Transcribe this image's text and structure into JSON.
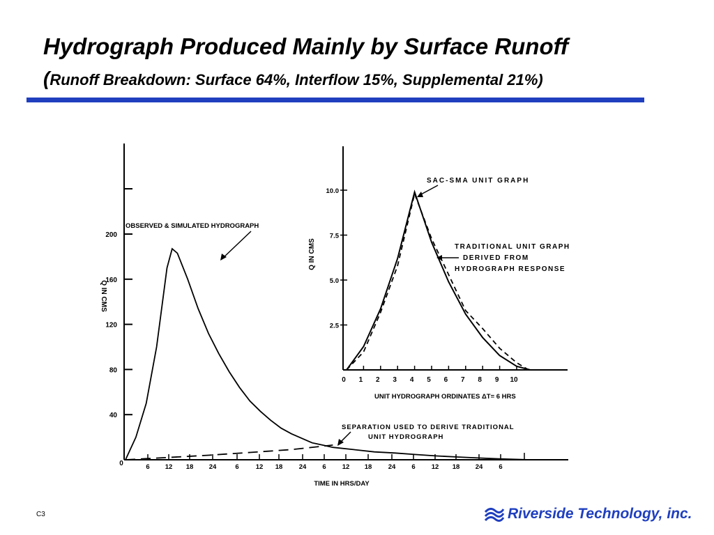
{
  "slide": {
    "title": "Hydrograph Produced Mainly by Surface Runoff",
    "subtitle_paren": "(",
    "subtitle": "Runoff Breakdown:  Surface 64%, Interflow 15%, Supplemental 21%)",
    "slide_number": "C3",
    "logo_text": "Riverside Technology, inc.",
    "rule_color": "#1f3fbf"
  },
  "chart_data": [
    {
      "type": "line",
      "ylabel": "Q IN CMS",
      "xlabel": "TIME IN HRS/DAY",
      "ylim": [
        0,
        280
      ],
      "yticks": [
        0,
        40,
        80,
        120,
        160,
        200
      ],
      "xlim": [
        0,
        39
      ],
      "xtick_labels": [
        "6",
        "12",
        "18",
        "24",
        "6",
        "12",
        "18",
        "24",
        "6",
        "12",
        "18",
        "24",
        "6",
        "12",
        "18",
        "24",
        "6"
      ],
      "annotations": [
        "OBSERVED & SIMULATED HYDROGRAPH",
        "SEPARATION USED TO DERIVE TRADITIONAL UNIT HYDROGRAPH"
      ],
      "series": [
        {
          "name": "OBSERVED & SIMULATED HYDROGRAPH",
          "style": "solid",
          "x": [
            0,
            1,
            2,
            3,
            4,
            4.5,
            5,
            6,
            7,
            8,
            9,
            10,
            11,
            12,
            13,
            14,
            15,
            16,
            17,
            18,
            19,
            20,
            22,
            24,
            26,
            28,
            30,
            32,
            34,
            36,
            39
          ],
          "y": [
            0,
            20,
            50,
            100,
            170,
            187,
            183,
            160,
            134,
            112,
            94,
            78,
            64,
            52,
            43,
            35,
            28,
            23,
            19,
            15,
            13,
            11,
            9,
            7,
            6,
            4.6,
            3.4,
            2.5,
            1.6,
            0.8,
            0
          ]
        },
        {
          "name": "SEPARATION USED TO DERIVE TRADITIONAL UNIT HYDROGRAPH",
          "style": "dashed",
          "x": [
            0,
            4,
            8,
            12,
            16,
            20
          ],
          "y": [
            0,
            2,
            4,
            6.5,
            9,
            13
          ]
        }
      ]
    },
    {
      "type": "line",
      "ylabel": "Q IN CMS",
      "xlabel": "UNIT HYDROGRAPH ORDINATES   ΔT= 6 HRS",
      "ylim": [
        0,
        12
      ],
      "yticks": [
        2.5,
        5.0,
        7.5,
        10.0
      ],
      "ytick_labels": [
        "2.5",
        "5.0",
        "7.5",
        "10.0"
      ],
      "xlim": [
        0,
        12
      ],
      "xticks": [
        0,
        1,
        2,
        3,
        4,
        5,
        6,
        7,
        8,
        9,
        10
      ],
      "annotations": [
        "SAC-SMA UNIT GRAPH",
        "TRADITIONAL UNIT GRAPH DERIVED FROM HYDROGRAPH RESPONSE"
      ],
      "series": [
        {
          "name": "SAC-SMA UNIT GRAPH",
          "style": "solid",
          "x": [
            0,
            1,
            2,
            3,
            4,
            5,
            6,
            7,
            8,
            9,
            10,
            10.8
          ],
          "y": [
            0,
            1.3,
            3.4,
            6.2,
            9.9,
            7.1,
            4.9,
            3.1,
            1.8,
            0.8,
            0.2,
            0
          ]
        },
        {
          "name": "TRADITIONAL UNIT GRAPH DERIVED FROM HYDROGRAPH RESPONSE",
          "style": "dashed",
          "x": [
            0,
            1,
            2,
            3,
            4,
            5,
            6,
            7,
            8,
            9,
            10,
            10.7
          ],
          "y": [
            0,
            1.0,
            3.2,
            5.8,
            9.8,
            7.3,
            5.3,
            3.3,
            2.3,
            1.2,
            0.4,
            0
          ]
        }
      ]
    }
  ]
}
